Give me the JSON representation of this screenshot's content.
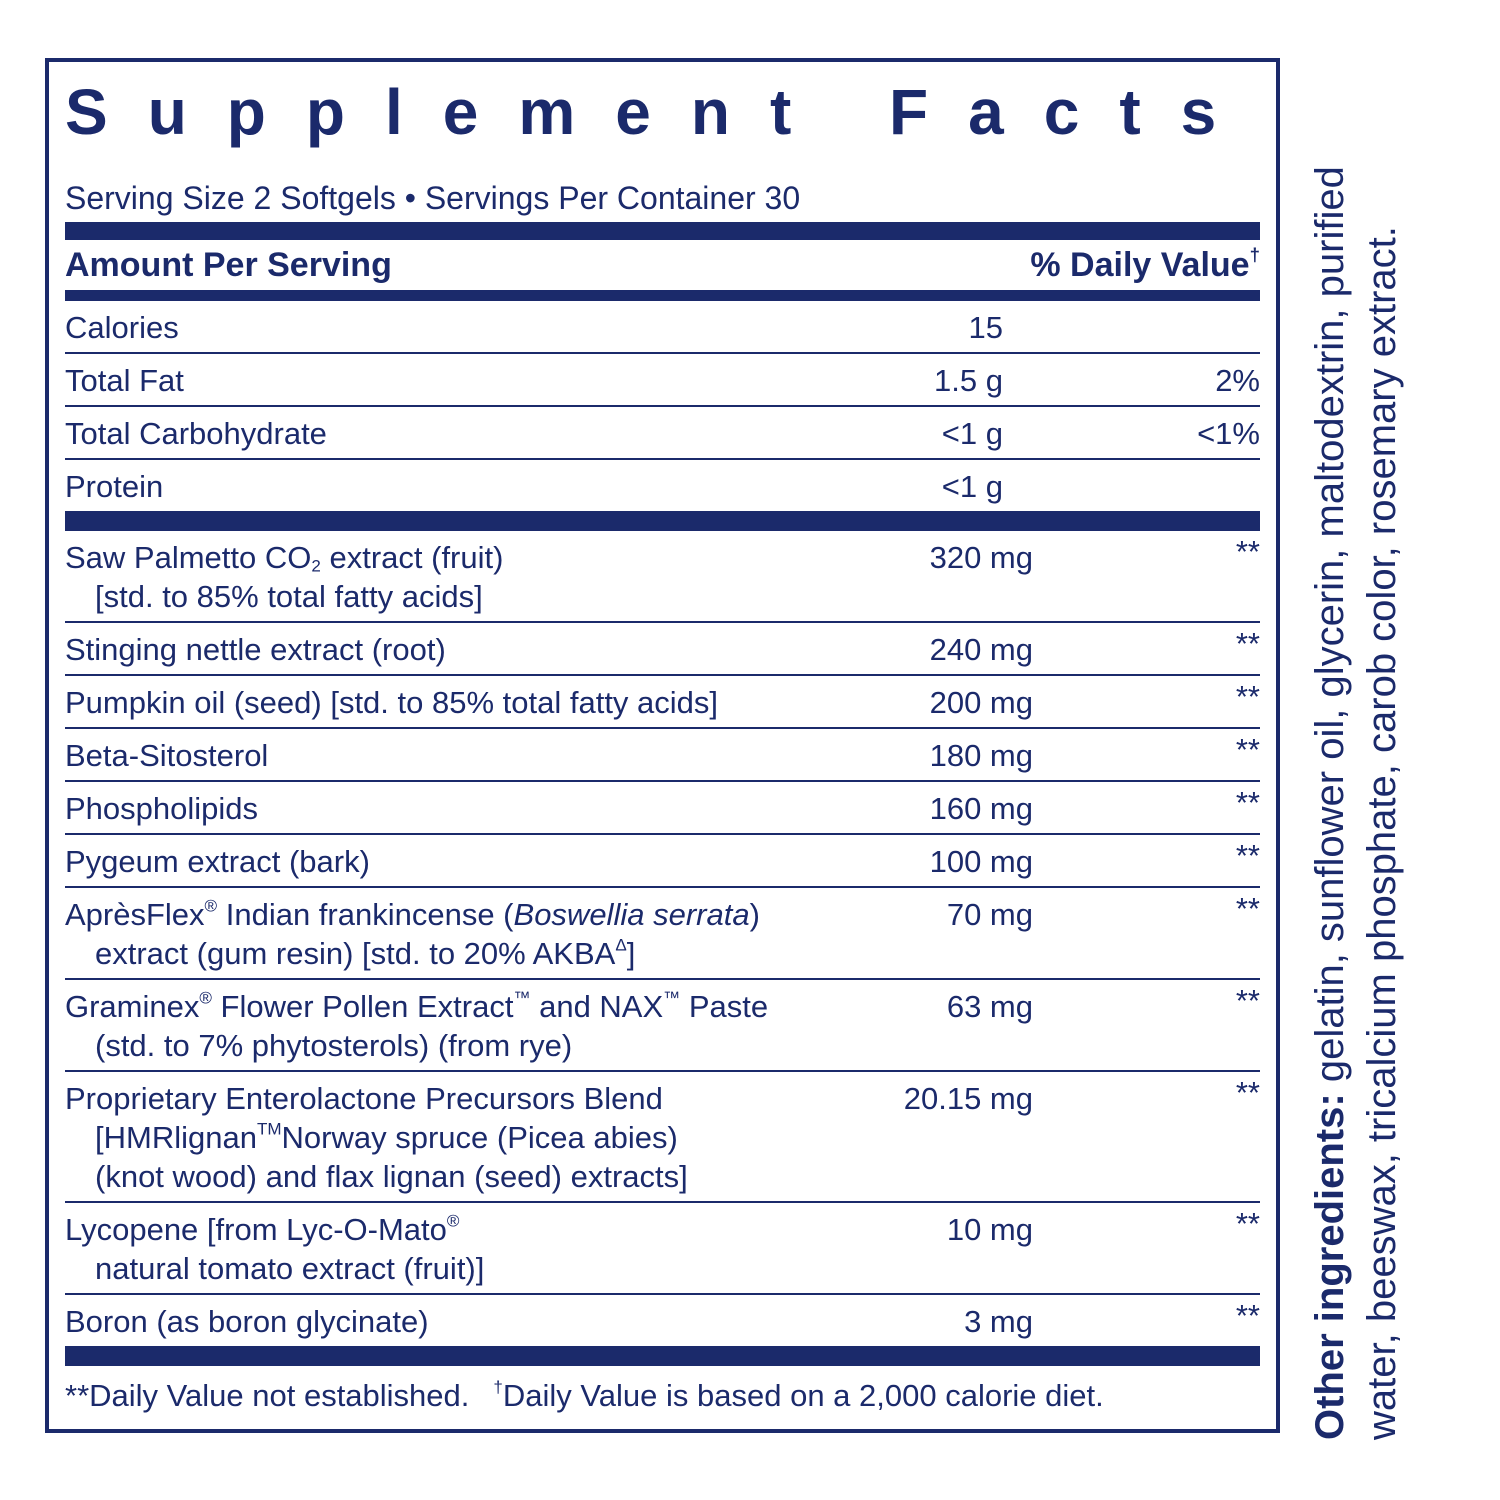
{
  "title": "Supplement Facts",
  "serving": "Serving Size 2 Softgels • Servings Per Container 30",
  "header": {
    "amount": "Amount Per Serving",
    "daily_value": [
      "% Daily Value",
      {
        "text": "†",
        "style": "sup"
      }
    ]
  },
  "nutrients": [
    {
      "lines": [
        [
          "Calories"
        ]
      ],
      "amount": "15"
    },
    {
      "lines": [
        [
          "Total Fat"
        ]
      ],
      "amount": "1.5 g",
      "dv": "2%"
    },
    {
      "lines": [
        [
          "Total Carbohydrate"
        ]
      ],
      "amount": "<1 g",
      "dv": "<1%"
    },
    {
      "lines": [
        [
          "Protein"
        ]
      ],
      "amount": "<1 g"
    }
  ],
  "ingredients": [
    {
      "lines": [
        [
          "Saw Palmetto CO",
          {
            "text": "2",
            "style": "sub"
          },
          " extract (fruit)"
        ],
        [
          "[std. to 85% total fatty acids]"
        ]
      ],
      "amount": "320 mg",
      "dv": "**"
    },
    {
      "lines": [
        [
          "Stinging nettle extract (root)"
        ]
      ],
      "amount": "240 mg",
      "dv": "**"
    },
    {
      "lines": [
        [
          "Pumpkin oil (seed) [std. to 85% total fatty acids]"
        ]
      ],
      "amount": "200 mg",
      "dv": "**"
    },
    {
      "lines": [
        [
          "Beta-Sitosterol"
        ]
      ],
      "amount": "180 mg",
      "dv": "**"
    },
    {
      "lines": [
        [
          "Phospholipids"
        ]
      ],
      "amount": "160 mg",
      "dv": "**"
    },
    {
      "lines": [
        [
          "Pygeum extract (bark)"
        ]
      ],
      "amount": "100 mg",
      "dv": "**"
    },
    {
      "lines": [
        [
          "AprèsFlex",
          {
            "text": "®",
            "style": "sup"
          },
          " Indian frankincense (",
          {
            "text": "Boswellia serrata",
            "style": "italic"
          },
          ")"
        ],
        [
          "extract (gum resin) [std. to 20% AKBA",
          {
            "text": "Δ",
            "style": "sup"
          },
          "]"
        ]
      ],
      "amount": "70 mg",
      "dv": "**"
    },
    {
      "lines": [
        [
          "Graminex",
          {
            "text": "®",
            "style": "sup"
          },
          " Flower Pollen Extract",
          {
            "text": "™",
            "style": "sup"
          },
          " and NAX",
          {
            "text": "™",
            "style": "sup"
          },
          " Paste"
        ],
        [
          "(std. to 7% phytosterols) (from rye)"
        ]
      ],
      "amount": "63 mg",
      "dv": "**"
    },
    {
      "lines": [
        [
          "Proprietary Enterolactone Precursors Blend"
        ],
        [
          "[HMRlignan",
          {
            "text": "TM",
            "style": "sup"
          },
          "Norway spruce (Picea abies)"
        ],
        [
          "(knot wood) and flax lignan (seed) extracts]"
        ]
      ],
      "amount": "20.15 mg",
      "dv": "**"
    },
    {
      "lines": [
        [
          "Lycopene [from Lyc-O-Mato",
          {
            "text": "®",
            "style": "sup"
          }
        ],
        [
          "natural tomato extract (fruit)]"
        ]
      ],
      "amount": "10 mg",
      "dv": "**"
    },
    {
      "lines": [
        [
          "Boron (as boron glycinate)"
        ]
      ],
      "amount": "3 mg",
      "dv": "**"
    }
  ],
  "footnotes": [
    [
      "**Daily Value not established."
    ],
    [
      {
        "text": "†",
        "style": "sup"
      },
      "Daily Value is based on a 2,000 calorie diet."
    ]
  ],
  "other_ingredients": {
    "label": "Other ingredients:",
    "text": "gelatin, sunflower oil, glycerin, maltodextrin, purified water, beeswax, tricalcium phosphate, carob color, rosemary extract."
  }
}
